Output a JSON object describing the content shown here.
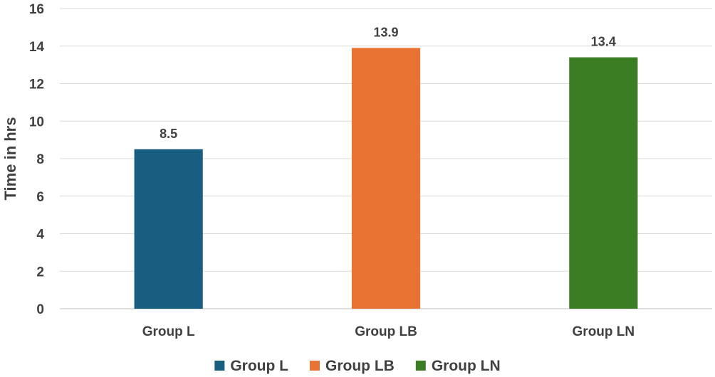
{
  "chart_data": {
    "type": "bar",
    "categories": [
      "Group L",
      "Group LB",
      "Group LN"
    ],
    "values": [
      8.5,
      13.9,
      13.4
    ],
    "data_labels": [
      "8.5",
      "13.9",
      "13.4"
    ],
    "colors": [
      "#175e80",
      "#e87333",
      "#3a7d23"
    ],
    "title": "",
    "xlabel": "",
    "ylabel": "Time in hrs",
    "ylim": [
      0,
      16
    ],
    "yticks": [
      0,
      2,
      4,
      6,
      8,
      10,
      12,
      14,
      16
    ],
    "grid": true,
    "legend": {
      "position": "bottom",
      "entries": [
        "Group L",
        "Group LB",
        "Group LN"
      ]
    }
  }
}
